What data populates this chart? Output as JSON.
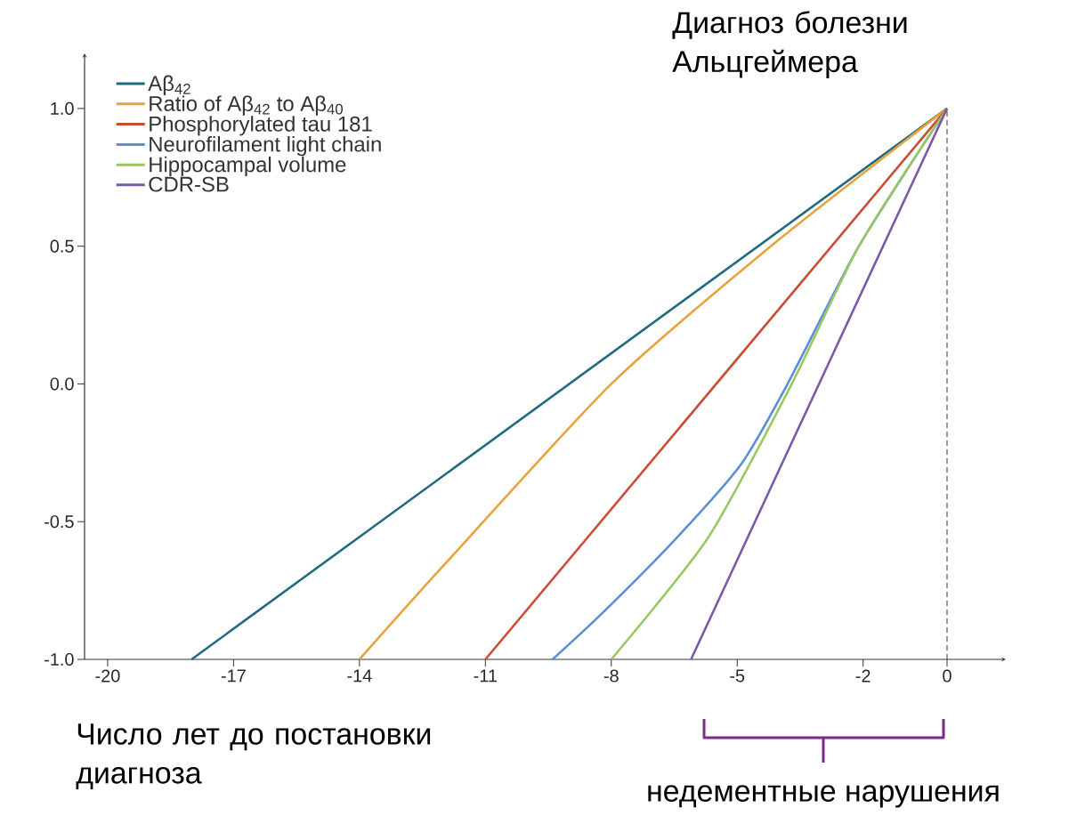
{
  "chart_data": {
    "type": "line",
    "annotations": [
      "Диагноз болезни Альцгеймера",
      "Число лет до постановки диагноза",
      "недементные нарушения"
    ],
    "xlim": [
      -20.55,
      1.4
    ],
    "ylim": [
      -1,
      1.2
    ],
    "xticks": [
      -20,
      -17,
      -14,
      -11,
      -8,
      -5,
      -2,
      0
    ],
    "yticks": [
      {
        "value": -1,
        "label": "-1.0"
      },
      {
        "value": -0.5,
        "label": "-0.5"
      },
      {
        "value": 0,
        "label": "0.0"
      },
      {
        "value": 0.5,
        "label": "0.5"
      },
      {
        "value": 1,
        "label": "1.0"
      }
    ],
    "legend": "top left",
    "line_style": "solid",
    "ref_lines": [
      {
        "axis": "x",
        "value": 0,
        "line_style": "dashed"
      }
    ],
    "series": [
      {
        "name": "Aβ$_{42}$",
        "color": "#1f6a7e",
        "x": [
          -18,
          0
        ],
        "values": [
          -1,
          1
        ]
      },
      {
        "name": "Ratio of Aβ$_{42}$ to Aβ$_{40}$",
        "color": "#e8a33c",
        "x": [
          -14,
          -12,
          -8,
          -4.2,
          0
        ],
        "values": [
          -1,
          -0.66,
          0,
          0.5,
          1
        ]
      },
      {
        "name": "Phosphorylated tau 181",
        "color": "#cc4b33",
        "x": [
          -11,
          0
        ],
        "values": [
          -1,
          1
        ]
      },
      {
        "name": "Neurofilament light chain",
        "color": "#5b8fd6",
        "x": [
          -9.4,
          -8.2,
          -6.45,
          -4.9,
          -3.8,
          -2.1,
          0
        ],
        "values": [
          -1,
          -0.83,
          -0.56,
          -0.29,
          0,
          0.5,
          1
        ]
      },
      {
        "name": "Hippocampal volume",
        "color": "#99c862",
        "x": [
          -8,
          -5.7,
          -3.7,
          -2.1,
          0
        ],
        "values": [
          -1,
          -0.56,
          0,
          0.5,
          1
        ]
      },
      {
        "name": "CDR-SB",
        "color": "#7a5aa8",
        "x": [
          -6.1,
          0
        ],
        "values": [
          -1,
          1
        ]
      }
    ]
  }
}
